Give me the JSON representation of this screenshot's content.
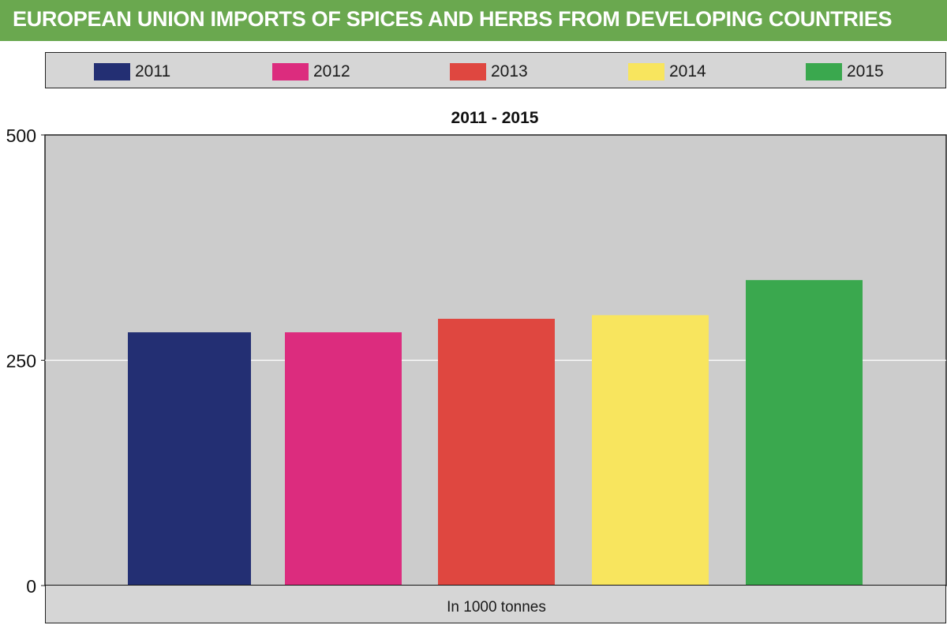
{
  "header": {
    "title": "EUROPEAN UNION IMPORTS OF SPICES AND HERBS FROM DEVELOPING COUNTRIES",
    "background": "#6aa84f"
  },
  "chart_data": {
    "type": "bar",
    "title": "2011 - 2015",
    "categories": [
      "2011",
      "2012",
      "2013",
      "2014",
      "2015"
    ],
    "values": [
      281,
      281,
      296,
      300,
      339
    ],
    "colors": [
      "#232f73",
      "#dc2c7e",
      "#df4740",
      "#f8e55e",
      "#3aa84e"
    ],
    "ylim": [
      0,
      500
    ],
    "yticks": [
      0,
      250,
      500
    ],
    "xlabel": "In 1000 tonnes",
    "ylabel": "",
    "grid": true,
    "legend": "top",
    "plot_background": "#cccccc"
  }
}
